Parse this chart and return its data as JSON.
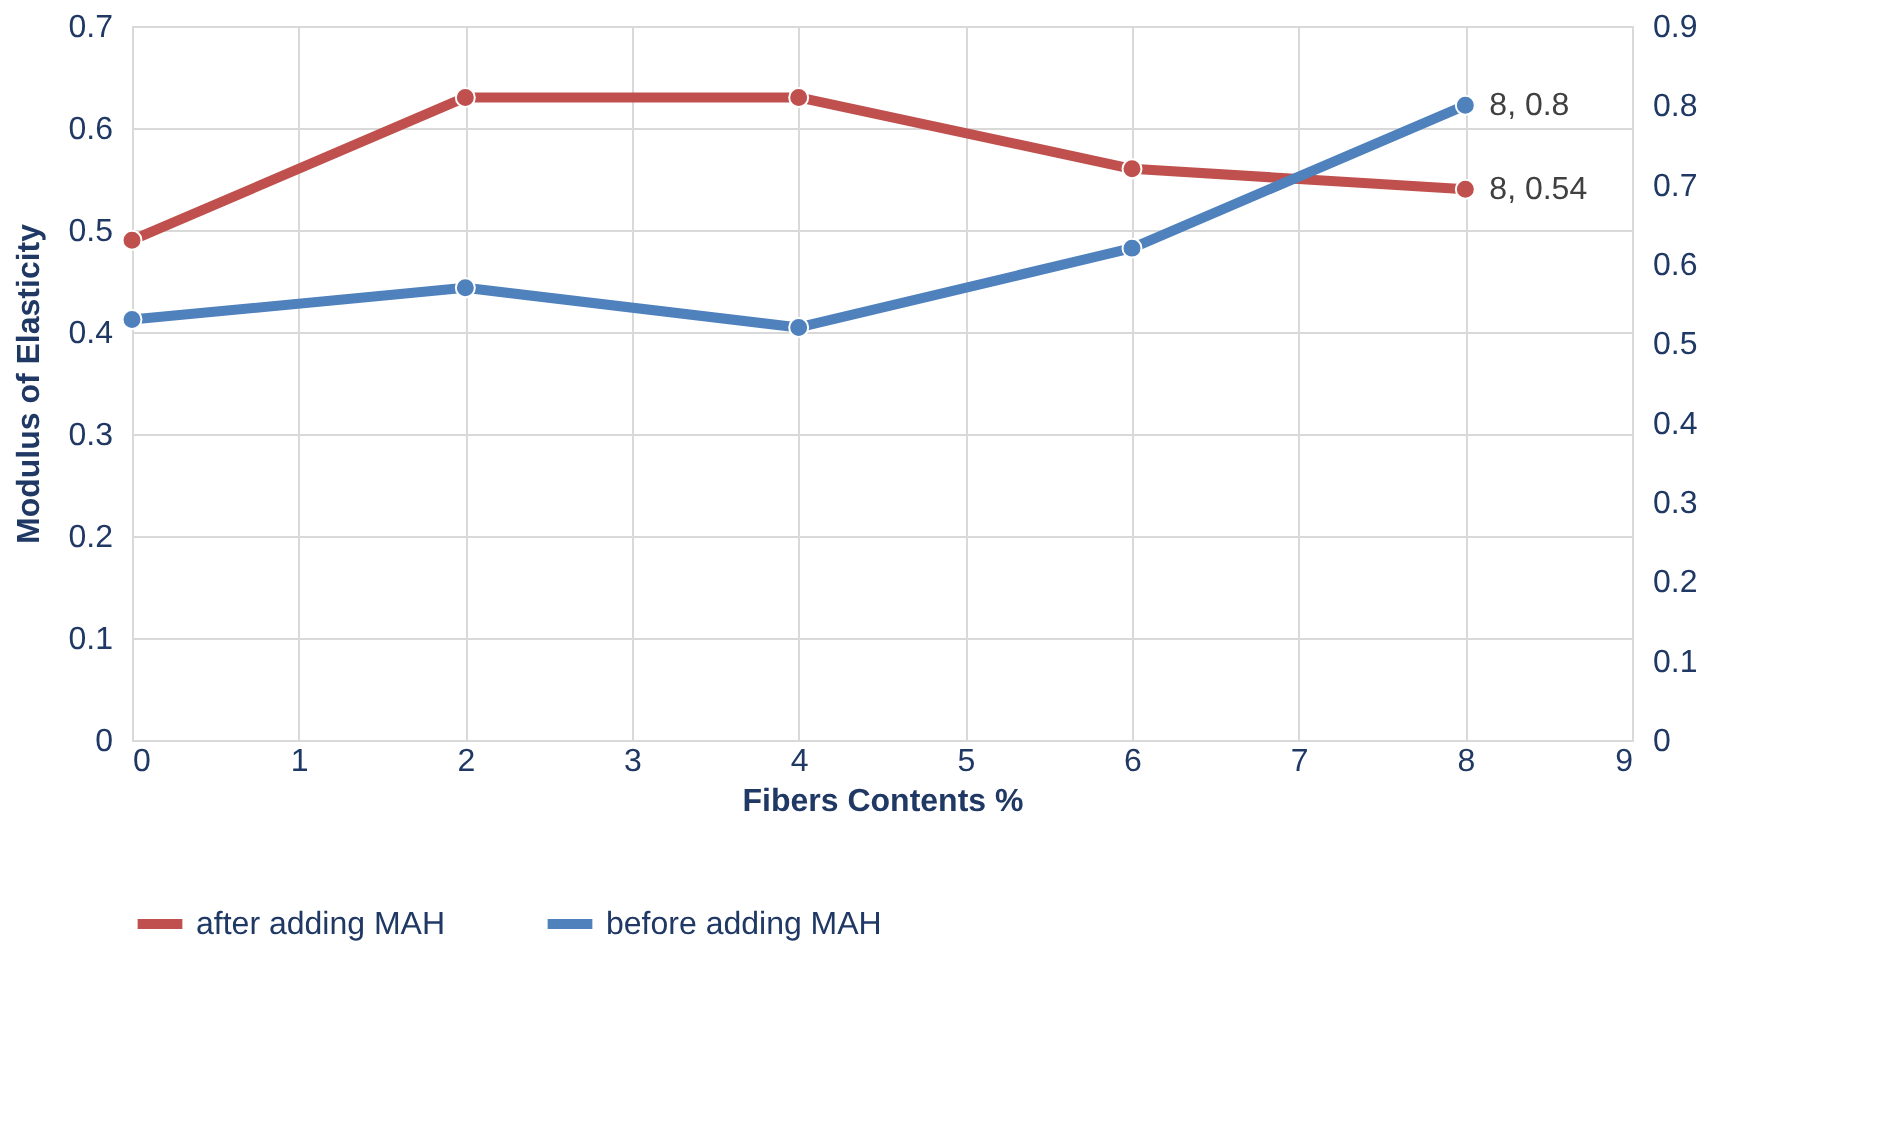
{
  "chart_data": {
    "type": "line",
    "xlabel": "Fibers Contents %",
    "ylabel": "Modulus of Elasticity",
    "x": [
      0,
      2,
      4,
      6,
      8
    ],
    "series": [
      {
        "name": "after adding MAH",
        "color": "#c0504d",
        "values": [
          0.49,
          0.63,
          0.63,
          0.56,
          0.54
        ],
        "value_labels": [
          null,
          null,
          null,
          null,
          "8, 0.54"
        ]
      },
      {
        "name": "before adding MAH",
        "color": "#4f81bd",
        "axis": "y2",
        "values": [
          0.53,
          0.57,
          0.52,
          0.62,
          0.8
        ],
        "value_labels": [
          null,
          null,
          null,
          null,
          "8, 0.8"
        ]
      }
    ],
    "xlim": [
      0,
      9
    ],
    "xticks": [
      0,
      1,
      2,
      3,
      4,
      5,
      6,
      7,
      8,
      9
    ],
    "ylim": [
      0,
      0.7
    ],
    "yticks": [
      0,
      0.1,
      0.2,
      0.3,
      0.4,
      0.5,
      0.6,
      0.7
    ],
    "y2lim": [
      0,
      0.9
    ],
    "y2ticks": [
      0,
      0.1,
      0.2,
      0.3,
      0.4,
      0.5,
      0.6,
      0.7,
      0.8,
      0.9
    ],
    "grid": true,
    "legend": "bottom",
    "marker": "circle",
    "line_style": "solid"
  }
}
